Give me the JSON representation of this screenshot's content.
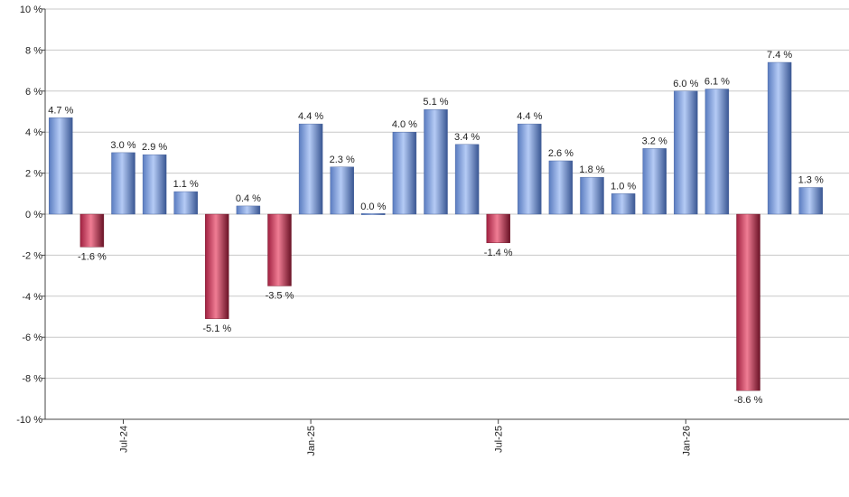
{
  "chart_data": {
    "type": "bar",
    "title": "",
    "xlabel": "",
    "ylabel": "",
    "ylim": [
      -10,
      10
    ],
    "y_ticks": [
      -10,
      -8,
      -6,
      -4,
      -2,
      0,
      2,
      4,
      6,
      8,
      10
    ],
    "y_tick_suffix": " %",
    "grid": true,
    "values": [
      4.7,
      -1.6,
      3.0,
      2.9,
      1.1,
      -5.1,
      0.4,
      -3.5,
      4.4,
      2.3,
      0.0,
      4.0,
      5.1,
      3.4,
      -1.4,
      4.4,
      2.6,
      1.8,
      1.0,
      3.2,
      6.0,
      6.1,
      -8.6,
      7.4,
      1.3
    ],
    "data_labels": [
      "4.7 %",
      "-1.6 %",
      "3.0 %",
      "2.9 %",
      "1.1 %",
      "-5.1 %",
      "0.4 %",
      "-3.5 %",
      "4.4 %",
      "2.3 %",
      "0.0 %",
      "4.0 %",
      "5.1 %",
      "3.4 %",
      "-1.4 %",
      "4.4 %",
      "2.6 %",
      "1.8 %",
      "1.0 %",
      "3.2 %",
      "6.0 %",
      "6.1 %",
      "-8.6 %",
      "7.4 %",
      "1.3 %"
    ],
    "x_tick_labels": [
      {
        "index": 2,
        "label": "Jul-24"
      },
      {
        "index": 8,
        "label": "Jan-25"
      },
      {
        "index": 14,
        "label": "Jul-25"
      },
      {
        "index": 20,
        "label": "Jan-26"
      }
    ],
    "colors": {
      "positive": "#7a9ce0",
      "positive_light": "#b8cdf5",
      "positive_dark": "#3f5b97",
      "negative": "#c0304f",
      "negative_light": "#ef8096",
      "negative_dark": "#6e1427",
      "grid": "#c8c8c8",
      "axis": "#444444"
    }
  }
}
